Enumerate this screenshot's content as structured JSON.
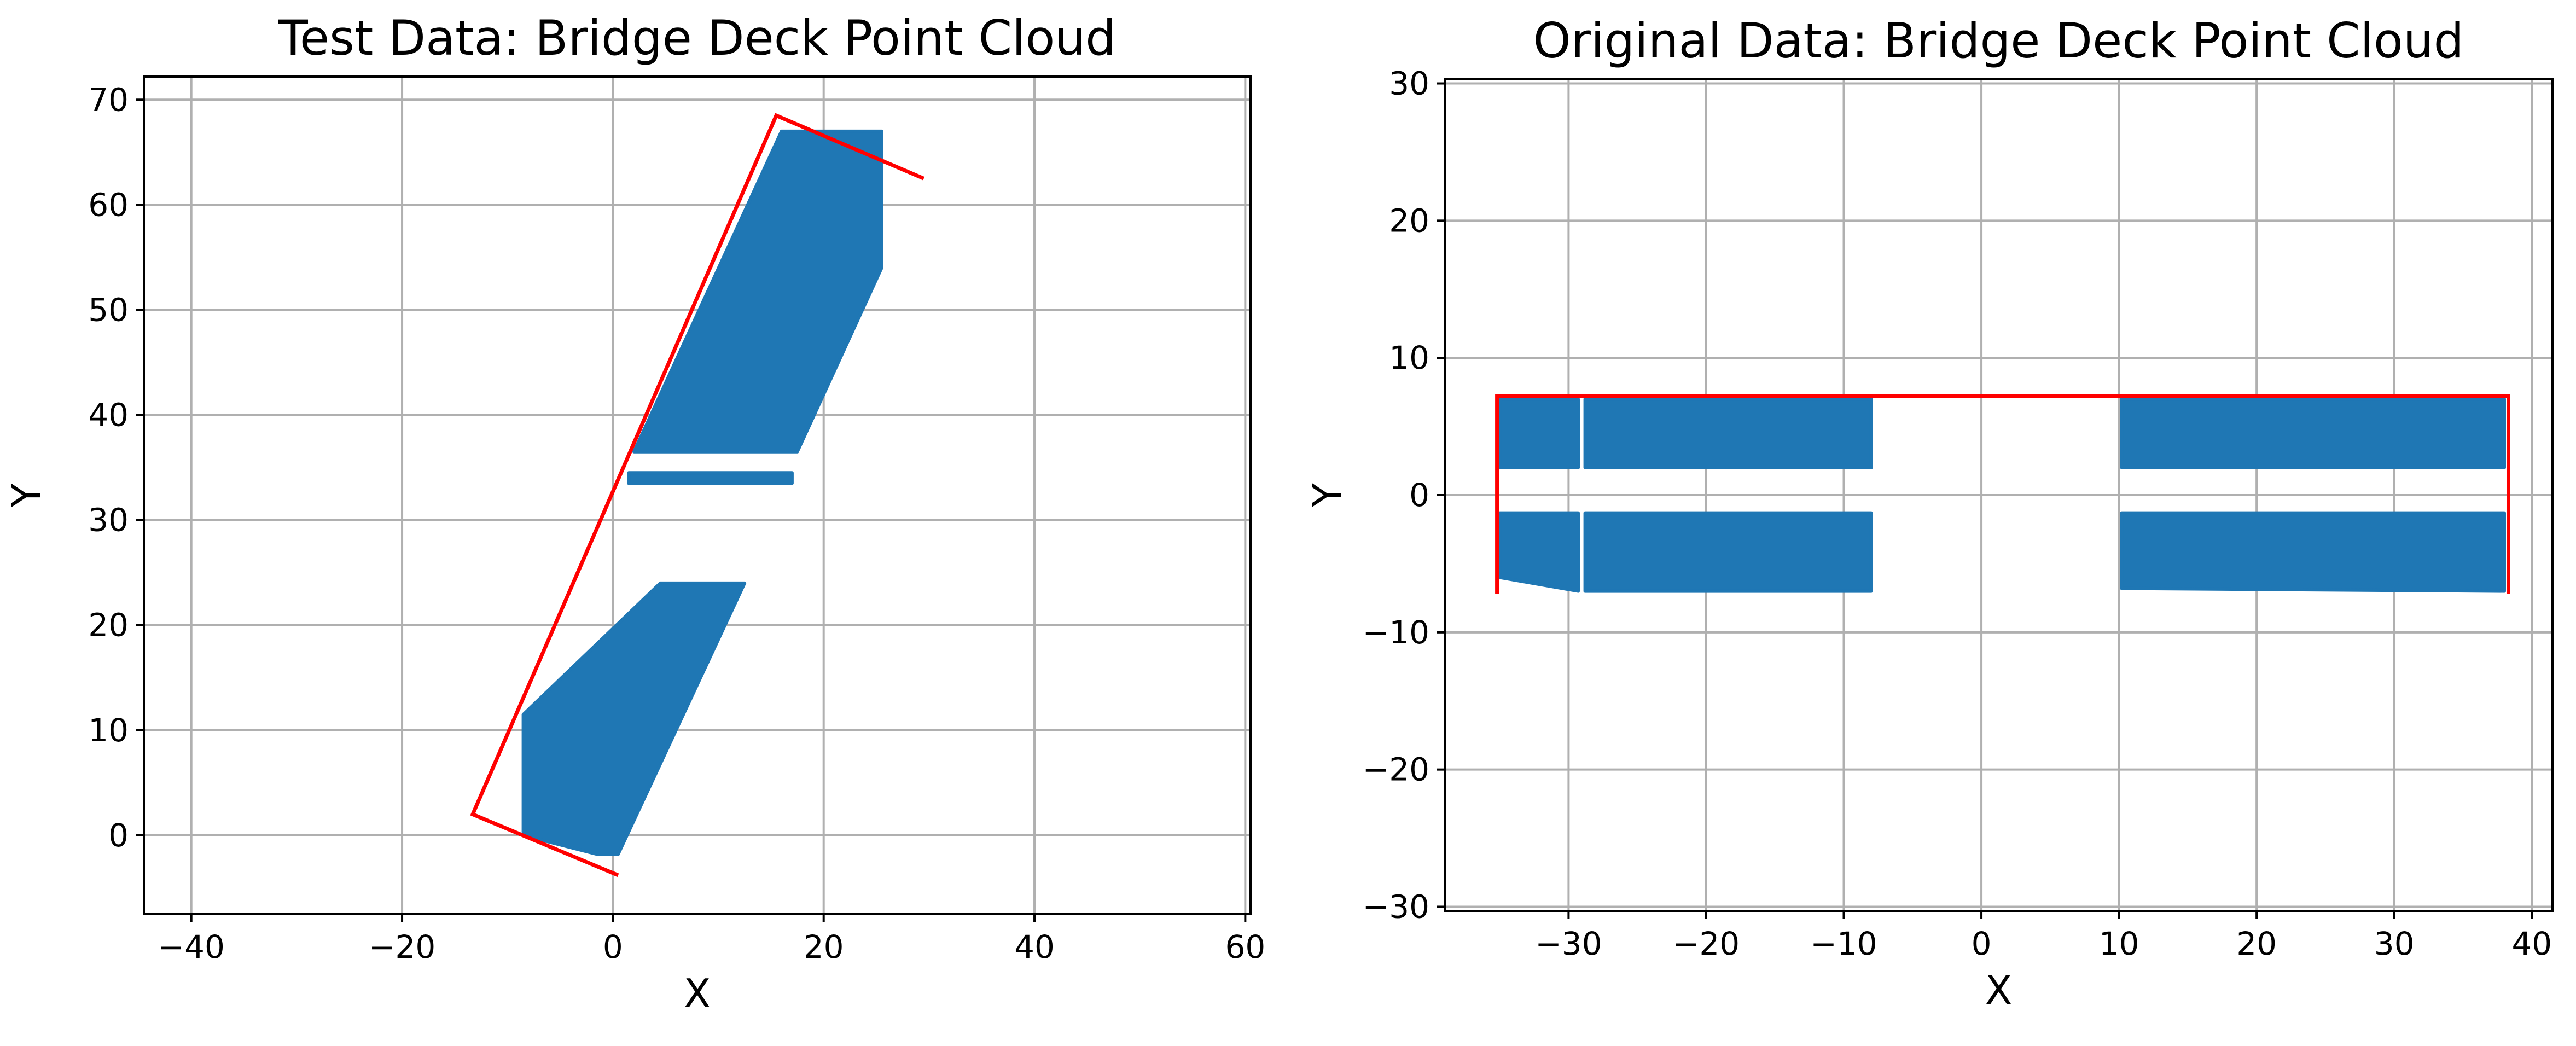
{
  "chart_data": [
    {
      "type": "scatter",
      "title": "Test Data: Bridge Deck Point Cloud",
      "xlabel": "X",
      "ylabel": "Y",
      "xlim": [
        -44.5,
        60.5
      ],
      "ylim": [
        -7.5,
        72.2
      ],
      "xticks": [
        -40,
        -20,
        0,
        20,
        40,
        60
      ],
      "yticks": [
        0,
        10,
        20,
        30,
        40,
        50,
        60,
        70
      ],
      "xtick_labels": [
        "−40",
        "−20",
        "0",
        "20",
        "40",
        "60"
      ],
      "ytick_labels": [
        "0",
        "10",
        "20",
        "30",
        "40",
        "50",
        "60",
        "70"
      ],
      "grid": true,
      "point_color": "#1f77b4",
      "boundary_color": "#ff0000",
      "point_regions": [
        [
          [
            -8.5,
            11.5
          ],
          [
            4.5,
            24
          ],
          [
            12.5,
            24
          ],
          [
            0.5,
            -1.8
          ],
          [
            -1.5,
            -1.8
          ],
          [
            -8.5,
            0
          ]
        ],
        [
          [
            1.5,
            34.5
          ],
          [
            17,
            34.5
          ],
          [
            17,
            33.5
          ],
          [
            1.5,
            33.5
          ]
        ],
        [
          [
            2,
            36.5
          ],
          [
            16,
            67
          ],
          [
            25.5,
            67
          ],
          [
            25.5,
            54
          ],
          [
            17.5,
            36.5
          ]
        ]
      ],
      "boundary": [
        [
          29.5,
          62.5
        ],
        [
          15.5,
          68.5
        ],
        [
          -13.3,
          2
        ],
        [
          0.5,
          -3.8
        ]
      ]
    },
    {
      "type": "scatter",
      "title": "Original Data: Bridge Deck Point Cloud",
      "xlabel": "X",
      "ylabel": "Y",
      "xlim": [
        -39,
        41.5
      ],
      "ylim": [
        -30.3,
        30.3
      ],
      "xticks": [
        -30,
        -20,
        -10,
        0,
        10,
        20,
        30,
        40
      ],
      "yticks": [
        -30,
        -20,
        -10,
        0,
        10,
        20,
        30
      ],
      "xtick_labels": [
        "−30",
        "−20",
        "−10",
        "0",
        "10",
        "20",
        "30",
        "40"
      ],
      "ytick_labels": [
        "−30",
        "−20",
        "−10",
        "0",
        "10",
        "20",
        "30"
      ],
      "grid": true,
      "point_color": "#1f77b4",
      "boundary_color": "#ff0000",
      "point_regions": [
        [
          [
            -35,
            2
          ],
          [
            -35,
            7
          ],
          [
            -29.3,
            7
          ],
          [
            -29.3,
            2
          ]
        ],
        [
          [
            -28.8,
            2
          ],
          [
            -28.8,
            7
          ],
          [
            -8,
            7
          ],
          [
            -8,
            2
          ]
        ],
        [
          [
            10.2,
            2
          ],
          [
            10.2,
            7
          ],
          [
            38,
            7
          ],
          [
            38,
            2
          ]
        ],
        [
          [
            -35,
            -6
          ],
          [
            -35,
            -1.3
          ],
          [
            -29.3,
            -1.3
          ],
          [
            -29.3,
            -7
          ]
        ],
        [
          [
            -28.8,
            -7
          ],
          [
            -28.8,
            -1.3
          ],
          [
            -8,
            -1.3
          ],
          [
            -8,
            -7
          ]
        ],
        [
          [
            10.2,
            -6.8
          ],
          [
            10.2,
            -1.3
          ],
          [
            38,
            -1.3
          ],
          [
            38,
            -7
          ]
        ]
      ],
      "boundary": [
        [
          -35.2,
          -7.2
        ],
        [
          -35.2,
          7.2
        ],
        [
          38.3,
          7.2
        ],
        [
          38.3,
          -7.2
        ]
      ]
    }
  ]
}
